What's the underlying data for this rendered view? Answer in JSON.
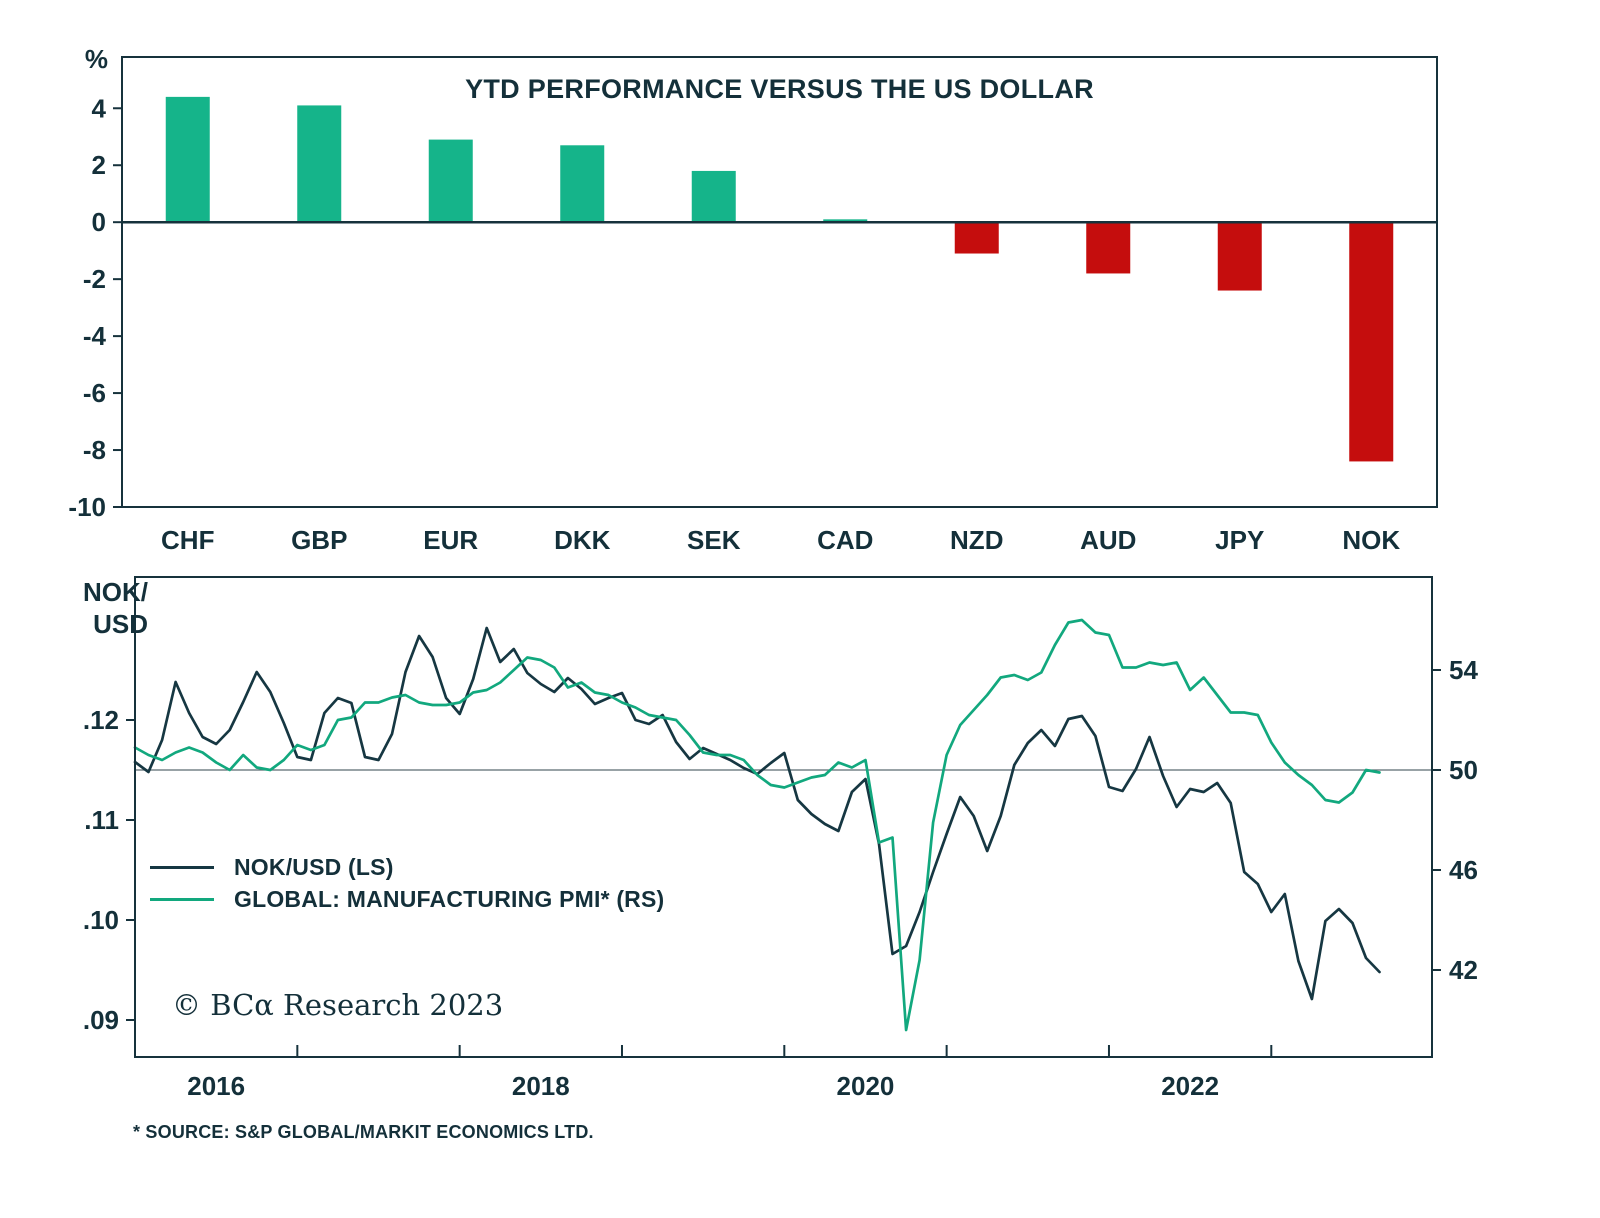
{
  "meta": {
    "copyright": "© BCα Research 2023",
    "footnote": "* SOURCE: S&P GLOBAL/MARKIT ECONOMICS LTD."
  },
  "colors": {
    "positive": "#15b48a",
    "negative": "#c50d0d",
    "nok_line": "#163742",
    "pmi_line": "#12a87e",
    "axis": "#16323c",
    "refline": "#5a6b72"
  },
  "chart_data": [
    {
      "type": "bar",
      "title": "YTD PERFORMANCE VERSUS THE US DOLLAR",
      "ylabel": "%",
      "categories": [
        "CHF",
        "GBP",
        "EUR",
        "DKK",
        "SEK",
        "CAD",
        "NZD",
        "AUD",
        "JPY",
        "NOK"
      ],
      "values": [
        4.4,
        4.1,
        2.9,
        2.7,
        1.8,
        0.1,
        -1.1,
        -1.8,
        -2.4,
        -8.4
      ],
      "yticks": [
        4,
        2,
        0,
        -2,
        -4,
        -6,
        -8,
        -10
      ],
      "ylim": [
        -10,
        5.8
      ],
      "grid": false,
      "color_rule": "green if value >= 0 else red"
    },
    {
      "type": "line",
      "left_axis_title_line1": "NOK/",
      "left_axis_title_line2": "USD",
      "x_start": 2015.5,
      "x_step": 0.08333,
      "xlim": [
        2015.5,
        2023.49
      ],
      "left_ylim": [
        0.0863,
        0.1343
      ],
      "right_ylim": [
        38.52,
        57.72
      ],
      "left_ticks": [
        0.09,
        0.1,
        0.11,
        0.12
      ],
      "left_tick_labels": [
        ".09",
        ".10",
        ".11",
        ".12"
      ],
      "right_ticks": [
        42,
        46,
        50,
        54
      ],
      "x_ticks": [
        2016.5,
        2017.5,
        2018.5,
        2019.5,
        2020.5,
        2021.5,
        2022.5
      ],
      "x_label_positions": [
        2016,
        2018,
        2020,
        2022
      ],
      "x_labels": [
        "2016",
        "2018",
        "2020",
        "2022"
      ],
      "ref_line_left": 0.115,
      "ref_line_right": 50,
      "legend": [
        "NOK/USD (LS)",
        "GLOBAL: MANUFACTURING PMI* (RS)"
      ],
      "series": [
        {
          "key": "nok-usd",
          "name": "NOK/USD (LS)",
          "axis": "left",
          "color_key": "nok_line",
          "values": [
            0.1158,
            0.1148,
            0.118,
            0.1238,
            0.1207,
            0.1183,
            0.1176,
            0.119,
            0.1218,
            0.1248,
            0.1228,
            0.1197,
            0.1163,
            0.116,
            0.1207,
            0.1222,
            0.1217,
            0.1163,
            0.116,
            0.1186,
            0.1248,
            0.1284,
            0.1263,
            0.1222,
            0.1206,
            0.1241,
            0.1292,
            0.1258,
            0.1271,
            0.1247,
            0.1236,
            0.1228,
            0.1242,
            0.1231,
            0.1216,
            0.1222,
            0.1227,
            0.12,
            0.1196,
            0.1205,
            0.1178,
            0.1161,
            0.1172,
            0.1166,
            0.116,
            0.1152,
            0.1146,
            0.1157,
            0.1167,
            0.112,
            0.1106,
            0.1096,
            0.1089,
            0.1128,
            0.1141,
            0.1076,
            0.0966,
            0.0974,
            0.1008,
            0.1048,
            0.1086,
            0.1123,
            0.1104,
            0.1069,
            0.1104,
            0.1155,
            0.1177,
            0.119,
            0.1174,
            0.1201,
            0.1204,
            0.1184,
            0.1133,
            0.1129,
            0.1151,
            0.1183,
            0.1144,
            0.1113,
            0.1131,
            0.1128,
            0.1137,
            0.1117,
            0.1048,
            0.1036,
            0.1008,
            0.1026,
            0.0959,
            0.0921,
            0.0999,
            0.1011,
            0.0997,
            0.0962,
            0.0948
          ]
        },
        {
          "key": "global-manufacturing-pmi",
          "name": "GLOBAL: MANUFACTURING PMI* (RS)",
          "axis": "right",
          "color_key": "pmi_line",
          "values": [
            50.9,
            50.6,
            50.4,
            50.7,
            50.9,
            50.7,
            50.3,
            50.0,
            50.6,
            50.1,
            50.0,
            50.4,
            51.0,
            50.8,
            51.0,
            52.0,
            52.1,
            52.7,
            52.7,
            52.9,
            53.0,
            52.7,
            52.6,
            52.6,
            52.7,
            53.1,
            53.2,
            53.5,
            54.0,
            54.5,
            54.4,
            54.1,
            53.3,
            53.5,
            53.1,
            53.0,
            52.7,
            52.5,
            52.2,
            52.1,
            52.0,
            51.4,
            50.7,
            50.6,
            50.6,
            50.4,
            49.8,
            49.4,
            49.3,
            49.5,
            49.7,
            49.8,
            50.3,
            50.1,
            50.4,
            47.1,
            47.3,
            39.6,
            42.4,
            47.9,
            50.6,
            51.8,
            52.4,
            53.0,
            53.7,
            53.8,
            53.6,
            53.9,
            55.0,
            55.9,
            56.0,
            55.5,
            55.4,
            54.1,
            54.1,
            54.3,
            54.2,
            54.3,
            53.2,
            53.7,
            53.0,
            52.3,
            52.3,
            52.2,
            51.1,
            50.3,
            49.8,
            49.4,
            48.8,
            48.7,
            49.1,
            50.0,
            49.9
          ]
        }
      ]
    }
  ]
}
